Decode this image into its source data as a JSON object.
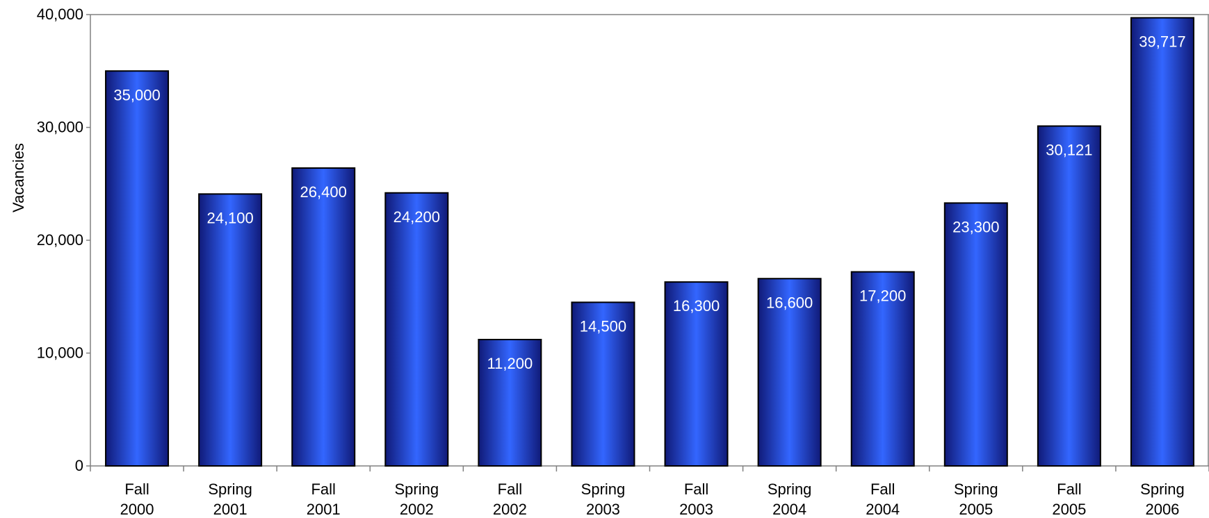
{
  "chart_data": {
    "type": "bar",
    "title": "",
    "xlabel": "",
    "ylabel": "Vacancies",
    "ylim": [
      0,
      40000
    ],
    "yticks": [
      0,
      10000,
      20000,
      30000,
      40000
    ],
    "ytick_labels": [
      "0",
      "10,000",
      "20,000",
      "30,000",
      "40,000"
    ],
    "grid": false,
    "legend": "none",
    "colors": {
      "bar_edge": "#3366ff",
      "bar_center": "#001a80",
      "bar_outline": "#000000"
    },
    "categories": [
      [
        "Fall",
        "2000"
      ],
      [
        "Spring",
        "2001"
      ],
      [
        "Fall",
        "2001"
      ],
      [
        "Spring",
        "2002"
      ],
      [
        "Fall",
        "2002"
      ],
      [
        "Spring",
        "2003"
      ],
      [
        "Fall",
        "2003"
      ],
      [
        "Spring",
        "2004"
      ],
      [
        "Fall",
        "2004"
      ],
      [
        "Spring",
        "2005"
      ],
      [
        "Fall",
        "2005"
      ],
      [
        "Spring",
        "2006"
      ]
    ],
    "values": [
      35000,
      24100,
      26400,
      24200,
      11200,
      14500,
      16300,
      16600,
      17200,
      23300,
      30121,
      39717
    ],
    "value_labels": [
      "35,000",
      "24,100",
      "26,400",
      "24,200",
      "11,200",
      "14,500",
      "16,300",
      "16,600",
      "17,200",
      "23,300",
      "30,121",
      "39,717"
    ]
  }
}
